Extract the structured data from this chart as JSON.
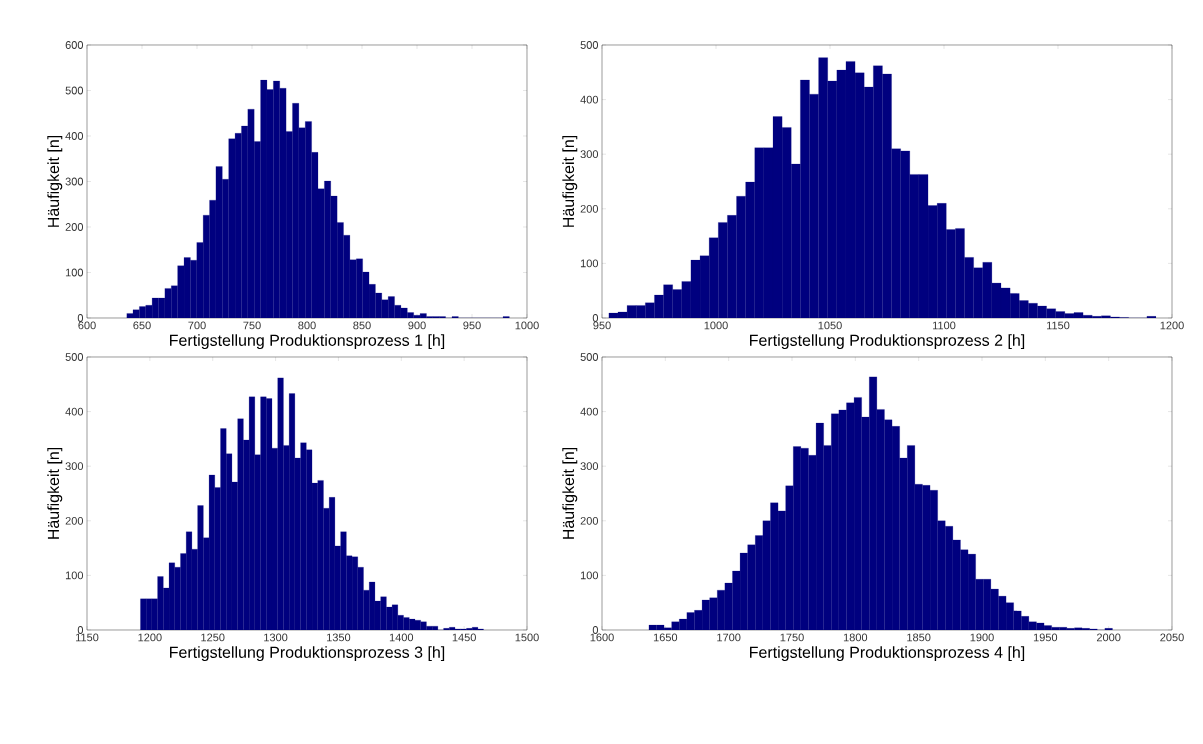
{
  "chart_data": [
    {
      "type": "histogram",
      "xlabel": "Fertigstellung Produktionsprozess 1 [h]",
      "ylabel": "Häufigkeit [n]",
      "color": "#00007f",
      "bins": [
        636,
        641.8,
        647.6,
        653.4,
        659.2,
        665,
        670.8,
        676.6,
        682.4,
        688.2,
        694,
        699.8,
        705.6,
        711.4,
        717.2,
        723,
        728.8,
        734.6,
        740.4,
        746.2,
        752,
        757.8,
        763.6,
        769.4,
        775.2,
        781,
        786.8,
        792.6,
        798.4,
        804.2,
        810,
        815.8,
        821.6,
        827.4,
        833.2,
        839,
        844.8,
        850.6,
        856.4,
        862.2,
        868,
        873.8,
        879.6,
        885.4,
        891.2,
        897,
        902.8,
        908.6,
        914.4,
        920.2,
        926,
        931.8,
        937.6,
        943.4,
        949.2,
        955,
        960.8,
        966.6,
        972.4,
        978.2,
        984
      ],
      "values": [
        10,
        18,
        25,
        28,
        44,
        44,
        65,
        71,
        115,
        133,
        127,
        166,
        226,
        259,
        333,
        305,
        394,
        406,
        422,
        459,
        388,
        523,
        502,
        521,
        505,
        410,
        472,
        418,
        432,
        364,
        284,
        301,
        268,
        210,
        182,
        128,
        130,
        101,
        74,
        55,
        40,
        47,
        28,
        22,
        12,
        6,
        10,
        3,
        3,
        3,
        0,
        3,
        0,
        0,
        0,
        0,
        0,
        0,
        0,
        3
      ],
      "xlim": [
        600,
        1000
      ],
      "ylim": [
        0,
        600
      ],
      "xticks": [
        600,
        650,
        700,
        750,
        800,
        850,
        900,
        950,
        1000
      ],
      "yticks": [
        0,
        100,
        200,
        300,
        400,
        500,
        600
      ]
    },
    {
      "type": "histogram",
      "xlabel": "Fertigstellung Produktionsprozess 2 [h]",
      "ylabel": "Häufigkeit [n]",
      "color": "#00007f",
      "bins": [
        953,
        957,
        961,
        965,
        969,
        973,
        977,
        981,
        985,
        989,
        993,
        997,
        1001,
        1005,
        1009,
        1013,
        1017,
        1021,
        1025,
        1029,
        1033,
        1037,
        1041,
        1045,
        1049,
        1053,
        1057,
        1061,
        1065,
        1069,
        1073,
        1077,
        1081,
        1085,
        1089,
        1093,
        1097,
        1101,
        1105,
        1109,
        1113,
        1117,
        1121,
        1125,
        1129,
        1133,
        1137,
        1141,
        1145,
        1149,
        1153,
        1157,
        1161,
        1165,
        1169,
        1173,
        1177,
        1181,
        1185,
        1189,
        1193
      ],
      "values": [
        9,
        11,
        23,
        23,
        28,
        42,
        61,
        52,
        67,
        106,
        114,
        147,
        175,
        188,
        223,
        249,
        312,
        312,
        369,
        349,
        282,
        436,
        410,
        477,
        434,
        454,
        470,
        449,
        423,
        462,
        447,
        310,
        306,
        263,
        263,
        206,
        210,
        162,
        164,
        111,
        92,
        102,
        64,
        55,
        45,
        32,
        27,
        22,
        17,
        12,
        8,
        10,
        5,
        3,
        4,
        2,
        1,
        0,
        0,
        3
      ],
      "xlim": [
        950,
        1200
      ],
      "ylim": [
        0,
        500
      ],
      "xticks": [
        950,
        1000,
        1050,
        1100,
        1150,
        1200
      ],
      "yticks": [
        0,
        100,
        200,
        300,
        400,
        500
      ]
    },
    {
      "type": "histogram",
      "xlabel": "Fertigstellung Produktionsprozess 3 [h]",
      "ylabel": "Häufigkeit [n]",
      "color": "#00007f",
      "bins": [
        1192.5,
        1197.05,
        1201.6,
        1206.15,
        1210.7,
        1215.25,
        1219.8,
        1224.35,
        1228.9,
        1233.45,
        1238,
        1242.55,
        1247.1,
        1251.65,
        1256.2,
        1260.75,
        1265.3,
        1269.85,
        1274.4,
        1278.95,
        1283.5,
        1288.05,
        1292.6,
        1297.15,
        1301.7,
        1306.25,
        1310.8,
        1315.35,
        1319.9,
        1324.45,
        1329,
        1333.55,
        1338.1,
        1342.65,
        1347.2,
        1351.75,
        1356.3,
        1360.85,
        1365.4,
        1369.95,
        1374.5,
        1379.05,
        1383.6,
        1388.15,
        1392.7,
        1397.25,
        1401.8,
        1406.35,
        1410.9,
        1415.45,
        1420,
        1424.55,
        1429.1,
        1433.65,
        1438.2,
        1442.75,
        1447.3,
        1451.85,
        1456.4,
        1460.95,
        1465.5
      ],
      "values": [
        57,
        57,
        57,
        98,
        77,
        123,
        115,
        140,
        180,
        148,
        228,
        169,
        284,
        261,
        369,
        323,
        271,
        387,
        348,
        427,
        321,
        427,
        424,
        333,
        462,
        338,
        433,
        315,
        343,
        330,
        269,
        274,
        223,
        243,
        154,
        180,
        136,
        134,
        115,
        73,
        88,
        53,
        61,
        42,
        46,
        27,
        23,
        20,
        18,
        15,
        7,
        7,
        0,
        3,
        5,
        2,
        2,
        3,
        5,
        2
      ],
      "xlim": [
        1150,
        1500
      ],
      "ylim": [
        0,
        500
      ],
      "xticks": [
        1150,
        1200,
        1250,
        1300,
        1350,
        1400,
        1450,
        1500
      ],
      "yticks": [
        0,
        100,
        200,
        300,
        400,
        500
      ]
    },
    {
      "type": "histogram",
      "xlabel": "Fertigstellung Produktionsprozess 4 [h]",
      "ylabel": "Häufigkeit [n]",
      "color": "#00007f",
      "bins": [
        1637,
        1643,
        1649,
        1655,
        1661,
        1667,
        1673,
        1679,
        1685,
        1691,
        1697,
        1703,
        1709,
        1715,
        1721,
        1727,
        1733,
        1739,
        1745,
        1751,
        1757,
        1763,
        1769,
        1775,
        1781,
        1787,
        1793,
        1799,
        1805,
        1811,
        1817,
        1823,
        1829,
        1835,
        1841,
        1847,
        1853,
        1859,
        1865,
        1871,
        1877,
        1883,
        1889,
        1895,
        1901,
        1907,
        1913,
        1919,
        1925,
        1931,
        1937,
        1943,
        1949,
        1955,
        1961,
        1967,
        1973,
        1979,
        1985,
        1991,
        1997,
        2003
      ],
      "values": [
        9,
        9,
        4,
        15,
        20,
        32,
        36,
        55,
        59,
        73,
        86,
        108,
        141,
        156,
        173,
        200,
        233,
        218,
        264,
        336,
        333,
        320,
        379,
        338,
        396,
        403,
        416,
        426,
        390,
        464,
        404,
        385,
        373,
        315,
        338,
        267,
        265,
        256,
        200,
        190,
        165,
        147,
        139,
        93,
        93,
        75,
        62,
        50,
        35,
        25,
        15,
        13,
        8,
        5,
        5,
        3,
        4,
        3,
        2,
        0,
        3
      ],
      "xlim": [
        1600,
        2050
      ],
      "ylim": [
        0,
        500
      ],
      "xticks": [
        1600,
        1650,
        1700,
        1750,
        1800,
        1850,
        1900,
        1950,
        2000,
        2050
      ],
      "yticks": [
        0,
        100,
        200,
        300,
        400,
        500
      ]
    }
  ]
}
